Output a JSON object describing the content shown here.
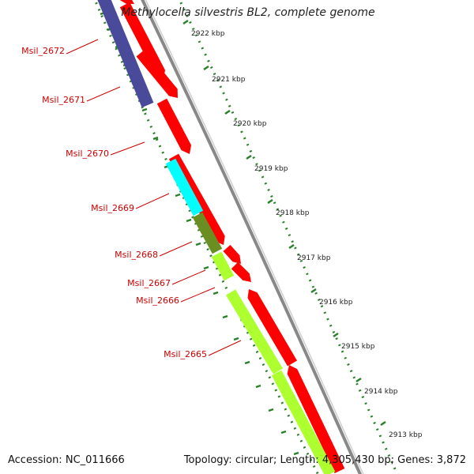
{
  "title": "Methylocella silvestris BL2, complete genome",
  "accession": {
    "label": "Accession:",
    "value": "NC_011666"
  },
  "topology": {
    "label": "Topology:",
    "value": "circular",
    "length_label": "Length:",
    "length_value": "4,305,430 bp",
    "genes_label": "Genes:",
    "genes_value": "3,872"
  },
  "scale_ticks": [
    {
      "label": "2922 kbp"
    },
    {
      "label": "2921 kbp"
    },
    {
      "label": "2920 kbp"
    },
    {
      "label": "2919 kbp"
    },
    {
      "label": "2918 kbp"
    },
    {
      "label": "2917 kbp"
    },
    {
      "label": "2916 kbp"
    },
    {
      "label": "2915 kbp"
    },
    {
      "label": "2914 kbp"
    },
    {
      "label": "2913 kbp"
    }
  ],
  "genes": [
    {
      "label": "Msil_2672",
      "cog_color": "#4a4a9a"
    },
    {
      "label": "Msil_2671",
      "cog_color": "#ff0000"
    },
    {
      "label": "Msil_2670",
      "cog_color": "#ff0000"
    },
    {
      "label": "Msil_2669",
      "cog_color": "#00ffff"
    },
    {
      "label": "Msil_2668",
      "cog_color": "#6b8e23"
    },
    {
      "label": "Msil_2667",
      "cog_color": "#ff0000"
    },
    {
      "label": "Msil_2666",
      "cog_color": "#ff0000"
    },
    {
      "label": "Msil_2665",
      "cog_color": "#adff2f"
    }
  ],
  "colors": {
    "label_red": "#cc0000",
    "cds_red": "#ff0000",
    "gc_green": "#2a7f2a",
    "backbone_gray": "#888888"
  }
}
